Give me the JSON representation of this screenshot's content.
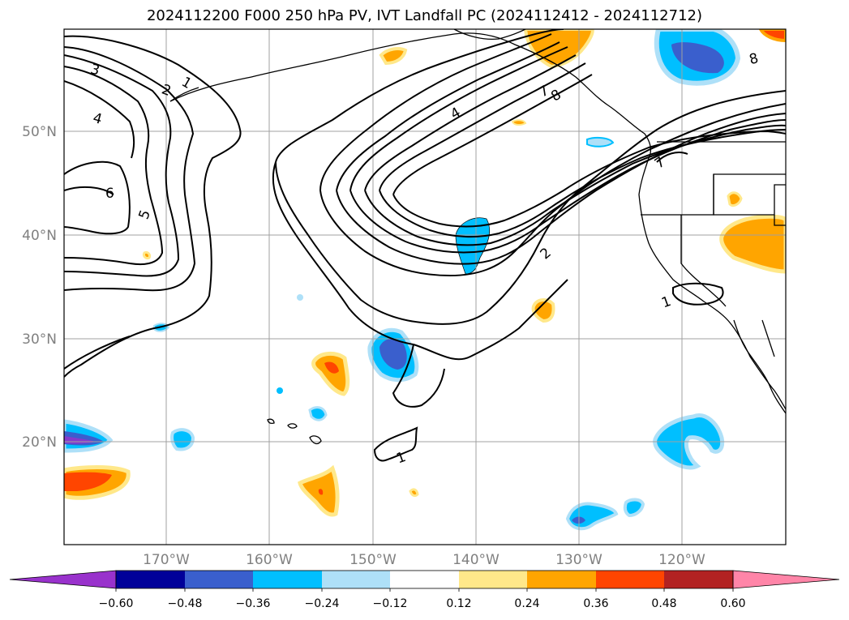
{
  "title": "2024112200 F000 250 hPa PV, IVT Landfall PC (2024112412 - 2024112712)",
  "map": {
    "lon_labels": [
      "170°W",
      "160°W",
      "150°W",
      "140°W",
      "130°W",
      "120°W"
    ],
    "lat_labels": [
      "50°N",
      "40°N",
      "30°N",
      "20°N"
    ],
    "contour_labels": [
      "3",
      "2",
      "1",
      "4",
      "6",
      "5",
      "4",
      "2",
      "7",
      "8",
      "8",
      "7",
      "1",
      "1"
    ],
    "colors": {
      "land_outline": "#000000",
      "gridline": "#a0a0a0",
      "neg_1": "#aee0f8",
      "neg_2": "#00bfff",
      "neg_3": "#3a5fcd",
      "neg_4": "#000099",
      "neg_5": "#9932cc",
      "pos_1": "#ffe88a",
      "pos_2": "#ffa500",
      "pos_3": "#ff4500",
      "pos_4": "#b22222",
      "pos_5": "#ff85a8"
    }
  },
  "colorbar": {
    "ticks": [
      "−0.60",
      "−0.48",
      "−0.36",
      "−0.24",
      "−0.12",
      "0.12",
      "0.24",
      "0.36",
      "0.48",
      "0.60"
    ],
    "bins": [
      "#9932cc",
      "#000099",
      "#3a5fcd",
      "#00bfff",
      "#aee0f8",
      "#ffffff",
      "#ffe88a",
      "#ffa500",
      "#ff4500",
      "#b22222",
      "#ff85a8"
    ]
  }
}
